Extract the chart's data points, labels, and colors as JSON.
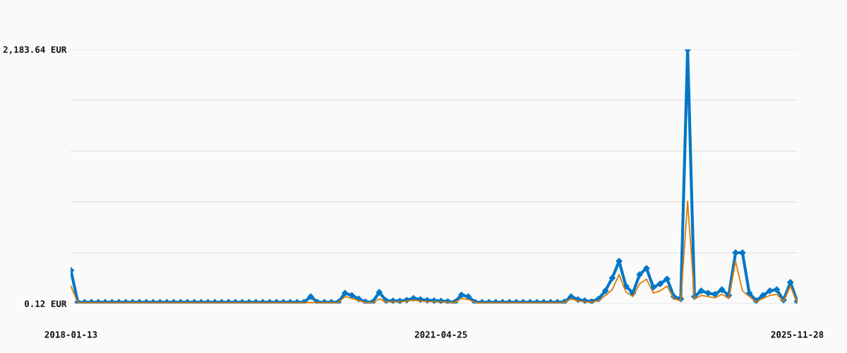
{
  "chart_data": {
    "type": "line",
    "categories": [
      "2018-01-13",
      null,
      null,
      null,
      null,
      null,
      null,
      null,
      null,
      null,
      null,
      null,
      null,
      null,
      null,
      null,
      null,
      null,
      null,
      null,
      null,
      null,
      null,
      null,
      null,
      null,
      null,
      null,
      null,
      null,
      null,
      null,
      null,
      null,
      null,
      null,
      null,
      null,
      null,
      null,
      null,
      null,
      null,
      null,
      null,
      null,
      null,
      null,
      null,
      null,
      null,
      null,
      null,
      null,
      "2021-04-25",
      null,
      null,
      null,
      null,
      null,
      null,
      null,
      null,
      null,
      null,
      null,
      null,
      null,
      null,
      null,
      null,
      null,
      null,
      null,
      null,
      null,
      null,
      null,
      null,
      null,
      null,
      null,
      null,
      null,
      null,
      null,
      null,
      null,
      null,
      null,
      null,
      null,
      null,
      null,
      null,
      null,
      null,
      null,
      null,
      null,
      null,
      null,
      null,
      null,
      null,
      null,
      "2025-11-28"
    ],
    "series": [
      {
        "color": "#0077c8",
        "marker": "diamond",
        "values": [
          285,
          12,
          12,
          12,
          12,
          12,
          12,
          12,
          12,
          12,
          12,
          12,
          12,
          12,
          12,
          12,
          12,
          12,
          12,
          12,
          12,
          12,
          12,
          12,
          12,
          12,
          12,
          12,
          12,
          12,
          12,
          12,
          12,
          12,
          12,
          60,
          12,
          12,
          12,
          12,
          90,
          70,
          40,
          15,
          12,
          97,
          25,
          24,
          22,
          30,
          45,
          35,
          28,
          25,
          22,
          18,
          12,
          75,
          60,
          12,
          12,
          12,
          12,
          12,
          12,
          12,
          12,
          12,
          12,
          12,
          12,
          12,
          15,
          60,
          35,
          25,
          18,
          40,
          110,
          220,
          364,
          150,
          90,
          250,
          303,
          140,
          170,
          212,
          60,
          40,
          2183.64,
          60,
          110,
          90,
          80,
          120,
          70,
          437,
          437,
          90,
          25,
          70,
          110,
          120,
          30,
          182,
          18
        ]
      },
      {
        "color": "#e07b00",
        "marker": "none",
        "values": [
          150,
          8,
          8,
          8,
          8,
          8,
          8,
          8,
          8,
          8,
          8,
          8,
          8,
          8,
          8,
          8,
          8,
          8,
          8,
          8,
          8,
          8,
          8,
          8,
          8,
          8,
          8,
          8,
          8,
          8,
          8,
          8,
          8,
          8,
          8,
          10,
          8,
          8,
          8,
          8,
          60,
          45,
          25,
          10,
          8,
          40,
          15,
          15,
          14,
          20,
          30,
          22,
          18,
          16,
          14,
          12,
          8,
          45,
          35,
          8,
          8,
          8,
          8,
          8,
          8,
          8,
          8,
          8,
          8,
          8,
          8,
          8,
          10,
          40,
          22,
          16,
          12,
          25,
          70,
          120,
          250,
          100,
          60,
          170,
          210,
          90,
          110,
          150,
          40,
          25,
          880,
          40,
          70,
          60,
          50,
          80,
          45,
          364,
          110,
          60,
          15,
          45,
          70,
          80,
          20,
          150,
          12
        ]
      }
    ],
    "ylim": [
      0.12,
      2183.64
    ],
    "yticks": [
      {
        "value": 0.12,
        "label": "0.12 EUR"
      },
      {
        "value": 436.82,
        "label": null
      },
      {
        "value": 873.53,
        "label": null
      },
      {
        "value": 1310.23,
        "label": null
      },
      {
        "value": 1746.94,
        "label": null
      },
      {
        "value": 2183.64,
        "label": "2,183.64 EUR"
      }
    ],
    "grid": "y",
    "legend": false
  }
}
